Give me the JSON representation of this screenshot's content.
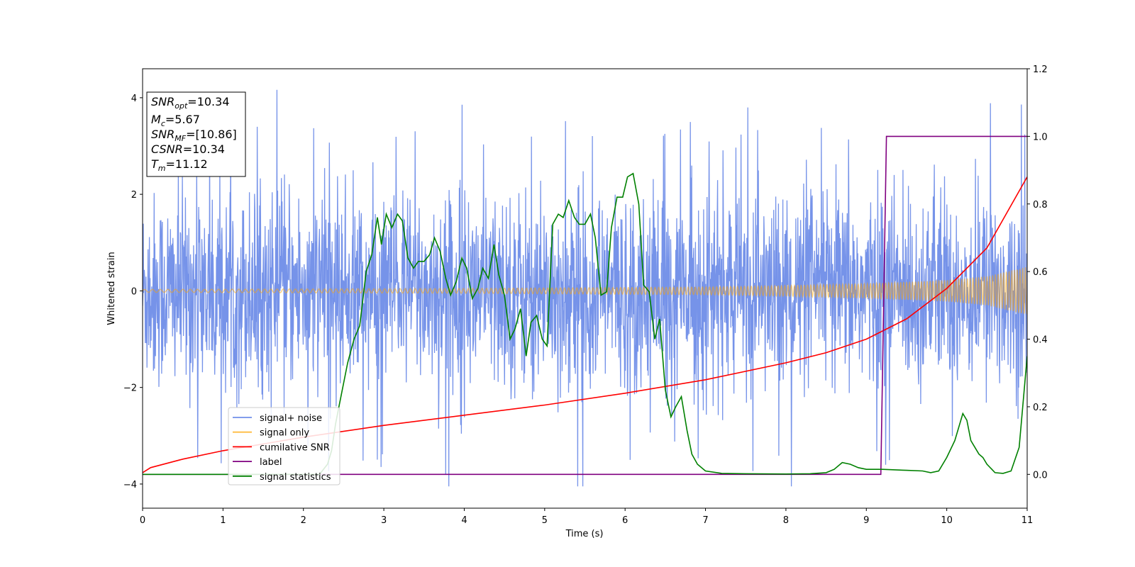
{
  "chart_data": {
    "type": "line",
    "xlabel": "Time (s)",
    "ylabel": "Whitened strain",
    "xlim": [
      0,
      11
    ],
    "ylim": [
      -4.5,
      4.6
    ],
    "y2lim": [
      -0.1,
      1.2
    ],
    "x_ticks": [
      0,
      1,
      2,
      3,
      4,
      5,
      6,
      7,
      8,
      9,
      10,
      11
    ],
    "y_ticks": [
      -4,
      -2,
      0,
      2,
      4
    ],
    "y2_ticks": [
      0.0,
      0.2,
      0.4,
      0.6,
      0.8,
      1.0,
      1.2
    ],
    "legend_position": "lower-left",
    "grid": false,
    "legend": [
      {
        "label": "signal+ noise",
        "color": "#4169e1"
      },
      {
        "label": "signal only",
        "color": "#ffa500"
      },
      {
        "label": "cumilative SNR",
        "color": "#ff0000"
      },
      {
        "label": "label",
        "color": "#800080"
      },
      {
        "label": "signal statistics",
        "color": "#008000"
      }
    ],
    "info_box": [
      {
        "base": "SNR",
        "sub": "opt",
        "value": "=10.34"
      },
      {
        "base": "M",
        "sub": "c",
        "value": "=5.67"
      },
      {
        "base": "SNR",
        "sub": "MF",
        "value": "=[10.86]"
      },
      {
        "base": "CSNR",
        "sub": "",
        "value": "=10.34"
      },
      {
        "base": "T",
        "sub": "m",
        "value": "=11.12"
      }
    ],
    "series": [
      {
        "name": "signal+ noise",
        "axis": "left",
        "color": "#4169e1",
        "description": "dense whitened noise fluctuating roughly between -2.5 and 2.5 with occasional spikes up to about 4.2"
      },
      {
        "name": "signal only",
        "axis": "left",
        "color": "#ffa500",
        "amplitude_envelope": {
          "x": [
            0,
            4,
            7,
            8,
            9,
            10,
            10.5,
            11
          ],
          "y": [
            0.03,
            0.05,
            0.08,
            0.11,
            0.15,
            0.22,
            0.3,
            0.5
          ]
        }
      },
      {
        "name": "cumilative SNR",
        "axis": "right",
        "color": "#ff0000",
        "x": [
          0,
          0.1,
          0.5,
          1,
          2,
          3,
          4,
          5,
          6,
          7,
          8,
          8.5,
          9,
          9.5,
          10,
          10.5,
          11
        ],
        "y": [
          0.005,
          0.02,
          0.045,
          0.07,
          0.11,
          0.145,
          0.175,
          0.205,
          0.24,
          0.28,
          0.33,
          0.36,
          0.4,
          0.46,
          0.55,
          0.67,
          0.88
        ]
      },
      {
        "name": "label",
        "axis": "right",
        "color": "#800080",
        "x": [
          0,
          9.18,
          9.25,
          11
        ],
        "y": [
          0.0,
          0.0,
          1.0,
          1.0
        ]
      },
      {
        "name": "signal statistics",
        "axis": "right",
        "color": "#008000",
        "x": [
          0,
          2.2,
          2.3,
          2.35,
          2.4,
          2.45,
          2.55,
          2.63,
          2.7,
          2.78,
          2.85,
          2.92,
          2.97,
          3.03,
          3.1,
          3.17,
          3.23,
          3.3,
          3.37,
          3.43,
          3.5,
          3.57,
          3.63,
          3.7,
          3.77,
          3.83,
          3.9,
          3.97,
          4.03,
          4.1,
          4.17,
          4.23,
          4.3,
          4.37,
          4.43,
          4.5,
          4.57,
          4.63,
          4.7,
          4.77,
          4.83,
          4.9,
          4.97,
          5.03,
          5.1,
          5.17,
          5.23,
          5.3,
          5.37,
          5.43,
          5.5,
          5.57,
          5.63,
          5.7,
          5.77,
          5.83,
          5.9,
          5.97,
          6.03,
          6.1,
          6.17,
          6.23,
          6.3,
          6.37,
          6.43,
          6.5,
          6.57,
          6.63,
          6.7,
          6.77,
          6.83,
          6.9,
          7.0,
          7.2,
          7.5,
          8.0,
          8.3,
          8.5,
          8.6,
          8.7,
          8.8,
          8.9,
          9.0,
          9.2,
          9.5,
          9.7,
          9.8,
          9.9,
          10.0,
          10.1,
          10.2,
          10.25,
          10.3,
          10.35,
          10.4,
          10.45,
          10.5,
          10.6,
          10.7,
          10.8,
          10.9,
          11.0
        ],
        "y": [
          0.0,
          0.0,
          0.03,
          0.07,
          0.15,
          0.21,
          0.33,
          0.4,
          0.44,
          0.6,
          0.65,
          0.76,
          0.68,
          0.77,
          0.73,
          0.77,
          0.75,
          0.64,
          0.61,
          0.63,
          0.63,
          0.65,
          0.7,
          0.66,
          0.58,
          0.53,
          0.57,
          0.64,
          0.61,
          0.52,
          0.55,
          0.61,
          0.58,
          0.68,
          0.59,
          0.53,
          0.4,
          0.43,
          0.49,
          0.35,
          0.45,
          0.47,
          0.4,
          0.38,
          0.74,
          0.77,
          0.76,
          0.81,
          0.76,
          0.74,
          0.74,
          0.77,
          0.7,
          0.53,
          0.54,
          0.73,
          0.82,
          0.82,
          0.88,
          0.89,
          0.8,
          0.56,
          0.54,
          0.4,
          0.46,
          0.25,
          0.17,
          0.2,
          0.23,
          0.13,
          0.06,
          0.03,
          0.01,
          0.003,
          0.002,
          0.001,
          0.002,
          0.005,
          0.015,
          0.035,
          0.03,
          0.02,
          0.015,
          0.015,
          0.012,
          0.01,
          0.005,
          0.01,
          0.05,
          0.1,
          0.18,
          0.16,
          0.1,
          0.08,
          0.06,
          0.05,
          0.03,
          0.005,
          0.003,
          0.01,
          0.08,
          0.35
        ]
      }
    ]
  }
}
